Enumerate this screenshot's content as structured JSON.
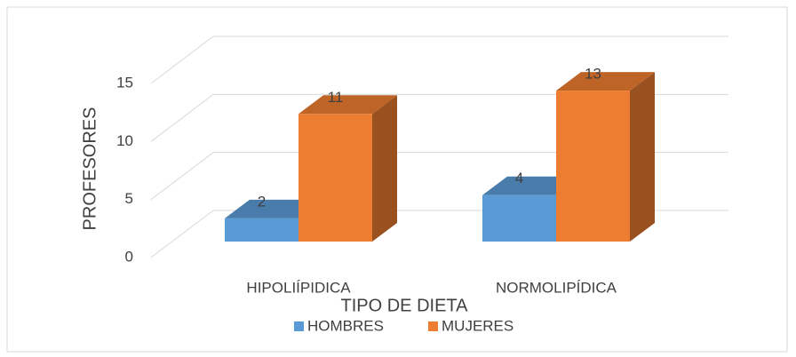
{
  "chart_data": {
    "type": "bar3d",
    "categories": [
      "HIPOLIÍPIDICA",
      "NORMOLIPÍDICA"
    ],
    "series": [
      {
        "name": "HOMBRES",
        "color": "#5b9bd5",
        "values": [
          2,
          4
        ]
      },
      {
        "name": "MUJERES",
        "color": "#ed7d31",
        "values": [
          11,
          13
        ]
      }
    ],
    "x_label": "TIPO DE DIETA",
    "y_label": "PROFESORES",
    "ylim": [
      0,
      15
    ],
    "yticks": [
      0,
      5,
      10,
      15
    ],
    "grid": true,
    "legend": "bottom"
  }
}
